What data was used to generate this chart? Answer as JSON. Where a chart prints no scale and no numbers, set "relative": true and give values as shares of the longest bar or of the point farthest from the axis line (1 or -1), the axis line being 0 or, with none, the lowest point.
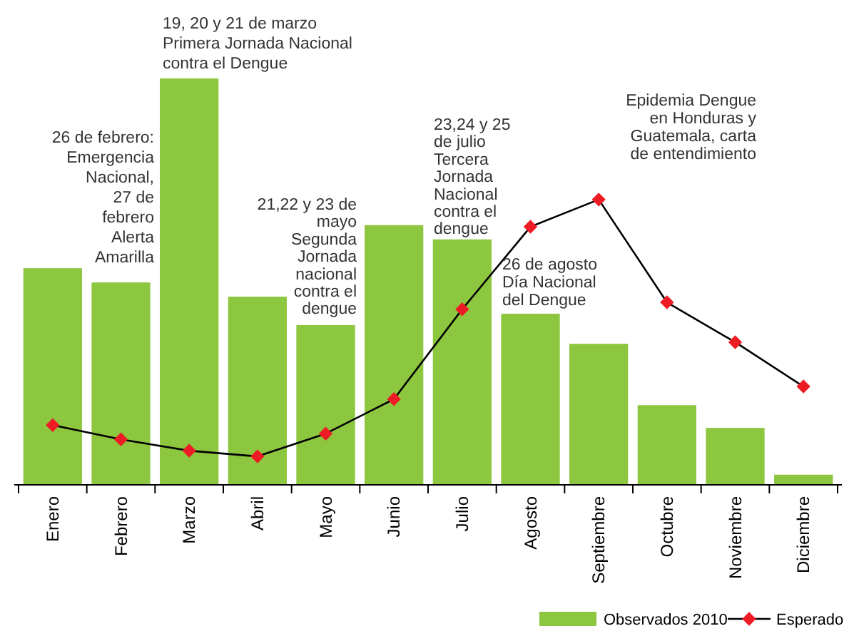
{
  "chart_data": {
    "type": "bar",
    "relative": true,
    "legend": "bottom right",
    "marker": "diamond",
    "categories": [
      "Enero",
      "Febrero",
      "Marzo",
      "Abril",
      "Mayo",
      "Junio",
      "Julio",
      "Agosto",
      "Septiembre",
      "Octubre",
      "Noviembre",
      "Diciembre"
    ],
    "series": [
      {
        "name": "Observados 2010",
        "color": "#8dc63f",
        "values": [
          0.533,
          0.498,
          1,
          0.463,
          0.393,
          0.639,
          0.604,
          0.421,
          0.347,
          0.196,
          0.14,
          0.025
        ]
      },
      {
        "name": "Esperado",
        "type": "line",
        "color": "#ed1c24",
        "values": [
          0.147,
          0.112,
          0.084,
          0.07,
          0.126,
          0.211,
          0.432,
          0.635,
          0.702,
          0.449,
          0.351,
          0.242
        ]
      }
    ],
    "annotations": [
      "26 de febrero:\nEmergencia\nNacional,\n27 de\nfebrero\nAlerta\nAmarilla",
      "19, 20 y 21 de marzo\nPrimera Jornada Nacional\ncontra el Dengue",
      "21,22 y 23 de\nmayo\nSegunda\nJornada\nnacional\ncontra el\ndengue",
      "23,24 y 25\nde julio\nTercera\nJornada\nNacional\ncontra el\ndengue",
      "26 de agosto\nDía Nacional\ndel Dengue",
      "Epidemia Dengue\nen Honduras y\nGuatemala, carta\nde entendimiento"
    ]
  }
}
